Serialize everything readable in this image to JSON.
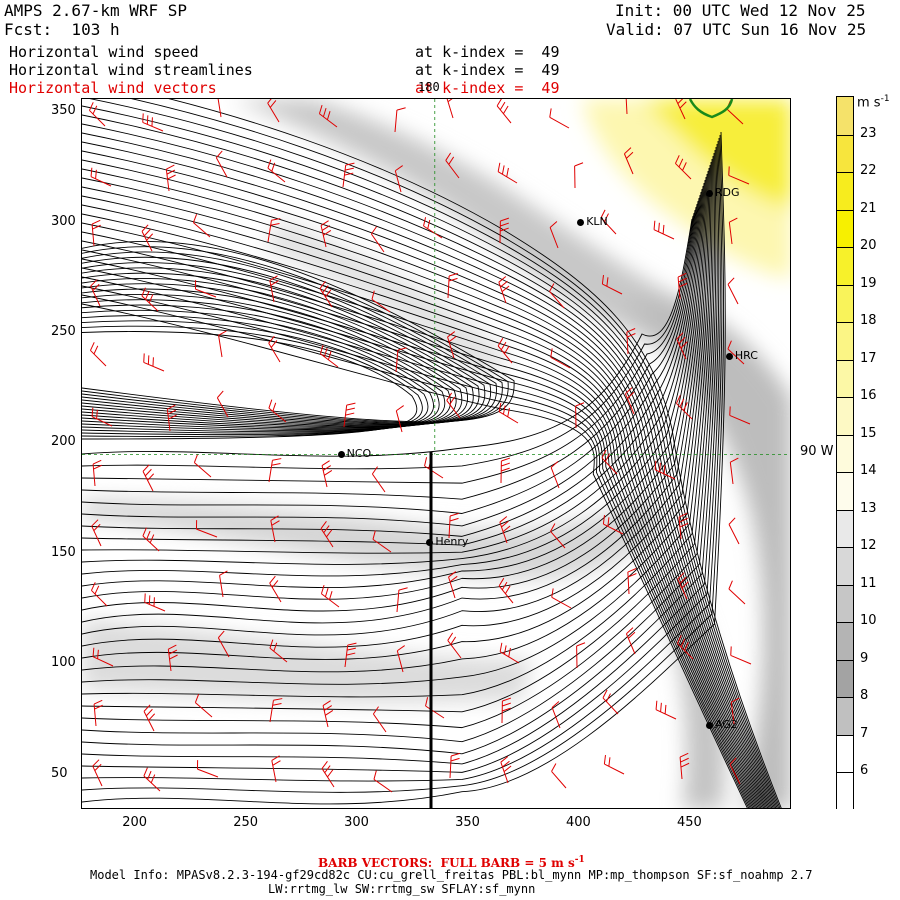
{
  "header": {
    "model": "AMPS 2.67-km WRF SP",
    "forecast": "Fcst:  103 h",
    "init": "Init: 00 UTC Wed 12 Nov 25",
    "valid": "Valid: 07 UTC Sun 16 Nov 25",
    "fields": [
      {
        "name": "Horizontal wind speed",
        "level": "at k-index =  49",
        "color": "#000000"
      },
      {
        "name": "Horizontal wind streamlines",
        "level": "at k-index =  49",
        "color": "#000000"
      },
      {
        "name": "Horizontal wind vectors",
        "level": "at k-index =  49",
        "color": "#e00000"
      }
    ]
  },
  "axes": {
    "x_ticks": [
      "200",
      "250",
      "300",
      "350",
      "400",
      "450"
    ],
    "y_ticks": [
      "350",
      "300",
      "250",
      "200",
      "150",
      "100",
      "50"
    ],
    "x_range": [
      176,
      496
    ],
    "y_range": [
      34,
      356
    ],
    "meridian_label": "180",
    "parallel_label": "90 W"
  },
  "stations": [
    {
      "id": "NCO",
      "x": 293,
      "y": 195
    },
    {
      "id": "Henry",
      "x": 333,
      "y": 155
    },
    {
      "id": "KLN",
      "x": 401,
      "y": 300
    },
    {
      "id": "RDG",
      "x": 459,
      "y": 313
    },
    {
      "id": "HRC",
      "x": 468,
      "y": 239
    },
    {
      "id": "AG2",
      "x": 459,
      "y": 72
    }
  ],
  "colorbar": {
    "units": "m s",
    "units_exp": "-1",
    "levels": [
      "23",
      "22",
      "21",
      "20",
      "19",
      "18",
      "17",
      "16",
      "15",
      "14",
      "13",
      "12",
      "11",
      "10",
      "9",
      "8",
      "7",
      "6"
    ],
    "colors": [
      "#f5e26a",
      "#f7e53d",
      "#f7ec1e",
      "#f7f000",
      "#f7f12a",
      "#f9f35a",
      "#fbf585",
      "#fcf8a6",
      "#fdf9c4",
      "#fefbdc",
      "#fefcec",
      "#e9e9e9",
      "#d8d8d8",
      "#c6c6c6",
      "#b4b4b4",
      "#a3a3a3",
      "#c0c0c0",
      "#ffffff"
    ]
  },
  "footer": {
    "barb_note": "BARB VECTORS:  FULL BARB = 5 m s",
    "barb_exp": "-1",
    "model_info": "Model Info: MPASv8.2.3-194-gf29cd82c CU:cu_grell_freitas PBL:bl_mynn MP:mp_thompson SF:sf_noahmp 2.7",
    "model_info_2": "LW:rrtmg_lw SW:rrtmg_sw SFLAY:sf_mynn"
  },
  "colors": {
    "streamline": "#000000",
    "barb": "#e00000",
    "grid": "#1a8a1a",
    "coast": "#1a8a1a"
  }
}
